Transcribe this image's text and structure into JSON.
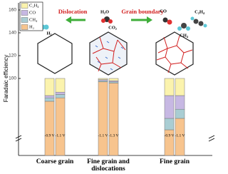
{
  "chart_data": {
    "type": "bar",
    "stacked": true,
    "y_label": "Faradaic efficiency",
    "ylim": [
      0,
      160
    ],
    "yticks": [
      100,
      120,
      140,
      160
    ],
    "axis_break": 40,
    "groups": [
      "Coarse grain",
      "Fine grain and dislocations",
      "Fine grain"
    ],
    "categories": [
      "-0.9 V",
      "-1.1 V",
      "-1.1 V",
      "-1.3 V",
      "-0.9 V",
      "-1.1 V"
    ],
    "series": [
      {
        "name": "C₂H₄",
        "color": "#fbf3ad",
        "values": [
          15,
          12,
          1,
          2,
          15,
          15
        ]
      },
      {
        "name": "CO",
        "color": "#c7b8e3",
        "values": [
          2,
          2,
          1,
          1,
          20,
          12
        ]
      },
      {
        "name": "CH₄",
        "color": "#a9cdd3",
        "values": [
          3,
          3,
          1,
          1,
          10,
          8
        ]
      },
      {
        "name": "H₂",
        "color": "#f7c48e",
        "values": [
          80,
          83,
          97,
          96,
          55,
          65
        ]
      }
    ],
    "annotations": [
      "Dislocation",
      "Grain boundary",
      "H₂O",
      "CO₂",
      "H₂",
      "CO",
      "C₂H₄",
      "CH₄"
    ]
  }
}
